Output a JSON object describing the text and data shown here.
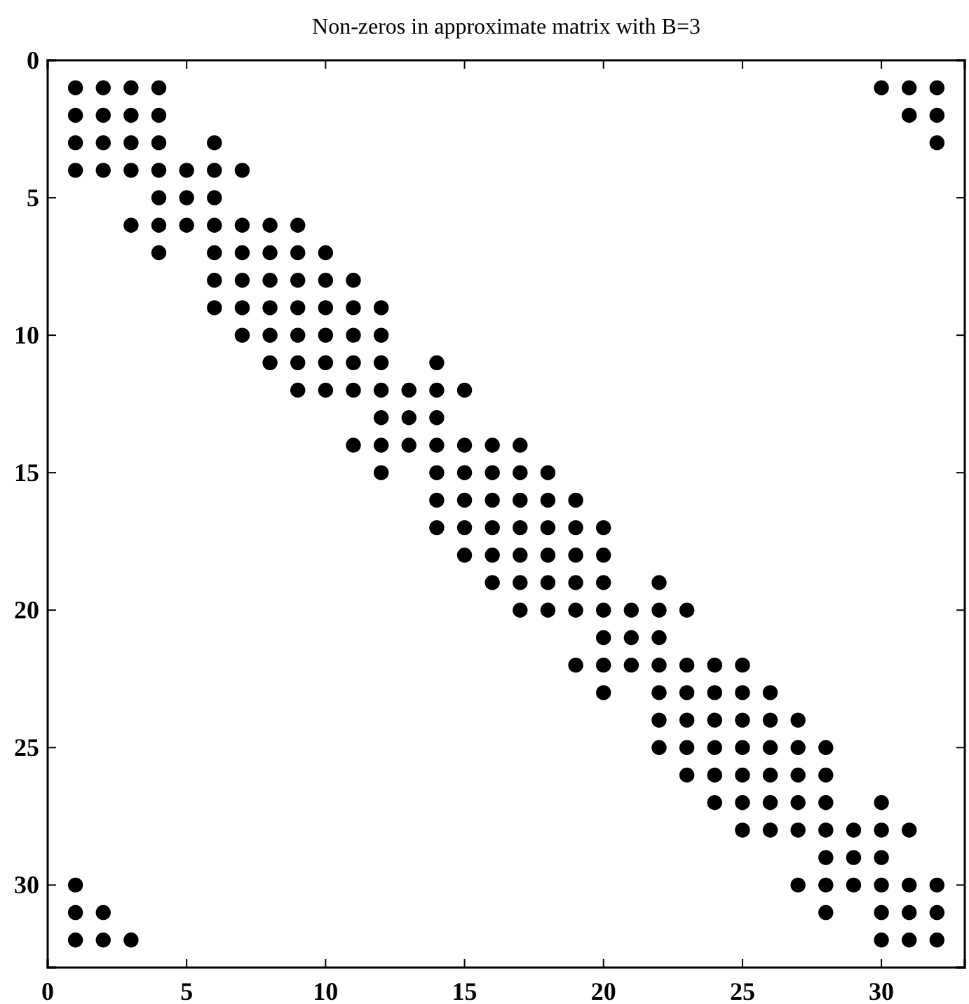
{
  "chart_data": {
    "type": "scatter",
    "title": "Non-zeros in approximate matrix with B=3",
    "xlim": [
      0,
      33
    ],
    "xticks": [
      0,
      5,
      10,
      15,
      20,
      25,
      30
    ],
    "ylim": [
      33,
      0
    ],
    "yticks": [
      0,
      5,
      10,
      15,
      20,
      25,
      30
    ],
    "grid": false,
    "marker": "circle",
    "series": [
      {
        "color": "#000000",
        "x": [
          1,
          2,
          3,
          4,
          30,
          31,
          32,
          1,
          2,
          3,
          4,
          31,
          32,
          1,
          2,
          3,
          4,
          6,
          32,
          1,
          2,
          3,
          4,
          5,
          6,
          7,
          4,
          5,
          6,
          3,
          4,
          5,
          6,
          7,
          8,
          9,
          4,
          6,
          7,
          8,
          9,
          10,
          6,
          7,
          8,
          9,
          10,
          11,
          6,
          7,
          8,
          9,
          10,
          11,
          12,
          7,
          8,
          9,
          10,
          11,
          12,
          8,
          9,
          10,
          11,
          12,
          14,
          9,
          10,
          11,
          12,
          13,
          14,
          15,
          12,
          13,
          14,
          11,
          12,
          13,
          14,
          15,
          16,
          17,
          12,
          14,
          15,
          16,
          17,
          18,
          14,
          15,
          16,
          17,
          18,
          19,
          14,
          15,
          16,
          17,
          18,
          19,
          20,
          15,
          16,
          17,
          18,
          19,
          20,
          16,
          17,
          18,
          19,
          20,
          22,
          17,
          18,
          19,
          20,
          21,
          22,
          23,
          20,
          21,
          22,
          19,
          20,
          21,
          22,
          23,
          24,
          25,
          20,
          22,
          23,
          24,
          25,
          26,
          22,
          23,
          24,
          25,
          26,
          27,
          22,
          23,
          24,
          25,
          26,
          27,
          28,
          23,
          24,
          25,
          26,
          27,
          28,
          24,
          25,
          26,
          27,
          28,
          30,
          25,
          26,
          27,
          28,
          29,
          30,
          31,
          28,
          29,
          30,
          1,
          27,
          28,
          29,
          30,
          31,
          32,
          1,
          2,
          28,
          30,
          31,
          32,
          1,
          2,
          3,
          30,
          31,
          32
        ],
        "values": [
          1,
          1,
          1,
          1,
          1,
          1,
          1,
          2,
          2,
          2,
          2,
          2,
          2,
          3,
          3,
          3,
          3,
          3,
          3,
          4,
          4,
          4,
          4,
          4,
          4,
          4,
          5,
          5,
          5,
          6,
          6,
          6,
          6,
          6,
          6,
          6,
          7,
          7,
          7,
          7,
          7,
          7,
          8,
          8,
          8,
          8,
          8,
          8,
          9,
          9,
          9,
          9,
          9,
          9,
          9,
          10,
          10,
          10,
          10,
          10,
          10,
          11,
          11,
          11,
          11,
          11,
          11,
          12,
          12,
          12,
          12,
          12,
          12,
          12,
          13,
          13,
          13,
          14,
          14,
          14,
          14,
          14,
          14,
          14,
          15,
          15,
          15,
          15,
          15,
          15,
          16,
          16,
          16,
          16,
          16,
          16,
          17,
          17,
          17,
          17,
          17,
          17,
          17,
          18,
          18,
          18,
          18,
          18,
          18,
          19,
          19,
          19,
          19,
          19,
          19,
          20,
          20,
          20,
          20,
          20,
          20,
          20,
          21,
          21,
          21,
          22,
          22,
          22,
          22,
          22,
          22,
          22,
          23,
          23,
          23,
          23,
          23,
          23,
          24,
          24,
          24,
          24,
          24,
          24,
          25,
          25,
          25,
          25,
          25,
          25,
          25,
          26,
          26,
          26,
          26,
          26,
          26,
          27,
          27,
          27,
          27,
          27,
          27,
          28,
          28,
          28,
          28,
          28,
          28,
          28,
          29,
          29,
          29,
          30,
          30,
          30,
          30,
          30,
          30,
          30,
          31,
          31,
          31,
          31,
          31,
          31,
          32,
          32,
          32,
          32,
          32,
          32
        ]
      }
    ]
  }
}
